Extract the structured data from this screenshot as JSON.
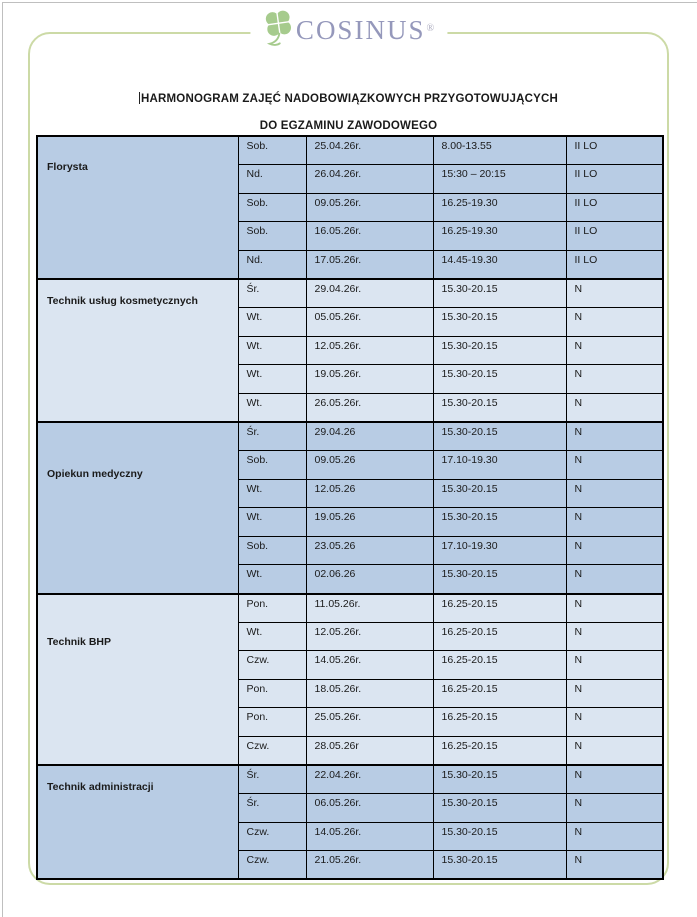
{
  "logo": {
    "text": "COSINUS",
    "registered_mark": "®",
    "clover_icon": "four-leaf-clover",
    "clover_color": "#a6cb8d",
    "text_color": "#9598bb"
  },
  "title": {
    "line1": "HARMONOGRAM ZAJĘĆ NADOBOWIĄZKOWYCH PRZYGOTOWUJĄCYCH",
    "line2": "DO EGZAMINU ZAWODOWEGO"
  },
  "colors": {
    "band_dark": "#b8cce4",
    "band_light": "#dbe5f1",
    "page_border_green": "#ccdaa6",
    "table_border": "#000000"
  },
  "table": {
    "columns": [
      "profession",
      "day",
      "date",
      "time",
      "group"
    ],
    "sections": [
      {
        "profession": "Florysta",
        "shade": "dark",
        "rows": [
          {
            "day": "Sob.",
            "date": "25.04.26r.",
            "time": "8.00-13.55",
            "group": "II LO"
          },
          {
            "day": "Nd.",
            "date": "26.04.26r.",
            "time": "15:30 – 20:15",
            "group": "II LO"
          },
          {
            "day": "Sob.",
            "date": "09.05.26r.",
            "time": "16.25-19.30",
            "group": "II LO"
          },
          {
            "day": "Sob.",
            "date": "16.05.26r.",
            "time": "16.25-19.30",
            "group": "II LO"
          },
          {
            "day": "Nd.",
            "date": "17.05.26r.",
            "time": "14.45-19.30",
            "group": "II LO"
          }
        ]
      },
      {
        "profession": "Technik usług kosmetycznych",
        "shade": "light",
        "rows": [
          {
            "day": "Śr.",
            "date": "29.04.26r.",
            "time": "15.30-20.15",
            "group": "N"
          },
          {
            "day": "Wt.",
            "date": "05.05.26r.",
            "time": "15.30-20.15",
            "group": "N"
          },
          {
            "day": "Wt.",
            "date": "12.05.26r.",
            "time": "15.30-20.15",
            "group": "N"
          },
          {
            "day": "Wt.",
            "date": "19.05.26r.",
            "time": "15.30-20.15",
            "group": "N"
          },
          {
            "day": "Wt.",
            "date": "26.05.26r.",
            "time": "15.30-20.15",
            "group": "N"
          }
        ]
      },
      {
        "profession": "Opiekun medyczny",
        "shade": "dark",
        "rows": [
          {
            "day": "Śr.",
            "date": "29.04.26",
            "time": "15.30-20.15",
            "group": "N"
          },
          {
            "day": "Sob.",
            "date": "09.05.26",
            "time": "17.10-19.30",
            "group": "N"
          },
          {
            "day": "Wt.",
            "date": "12.05.26",
            "time": "15.30-20.15",
            "group": "N"
          },
          {
            "day": "Wt.",
            "date": "19.05.26",
            "time": "15.30-20.15",
            "group": "N"
          },
          {
            "day": "Sob.",
            "date": "23.05.26",
            "time": "17.10-19.30",
            "group": "N"
          },
          {
            "day": "Wt.",
            "date": "02.06.26",
            "time": "15.30-20.15",
            "group": "N"
          }
        ]
      },
      {
        "profession": "Technik BHP",
        "shade": "light",
        "rows": [
          {
            "day": "Pon.",
            "date": "11.05.26r.",
            "time": "16.25-20.15",
            "group": "N"
          },
          {
            "day": "Wt.",
            "date": "12.05.26r.",
            "time": "16.25-20.15",
            "group": "N"
          },
          {
            "day": "Czw.",
            "date": "14.05.26r.",
            "time": "16.25-20.15",
            "group": "N"
          },
          {
            "day": "Pon.",
            "date": "18.05.26r.",
            "time": "16.25-20.15",
            "group": "N"
          },
          {
            "day": "Pon.",
            "date": "25.05.26r.",
            "time": "16.25-20.15",
            "group": "N"
          },
          {
            "day": "Czw.",
            "date": "28.05.26r",
            "time": "16.25-20.15",
            "group": "N"
          }
        ]
      },
      {
        "profession": "Technik administracji",
        "shade": "dark",
        "rows": [
          {
            "day": "Śr.",
            "date": "22.04.26r.",
            "time": "15.30-20.15",
            "group": "N"
          },
          {
            "day": "Śr.",
            "date": "06.05.26r.",
            "time": "15.30-20.15",
            "group": "N"
          },
          {
            "day": "Czw.",
            "date": "14.05.26r.",
            "time": "15.30-20.15",
            "group": "N"
          },
          {
            "day": "Czw.",
            "date": "21.05.26r.",
            "time": "15.30-20.15",
            "group": "N"
          }
        ]
      }
    ]
  }
}
